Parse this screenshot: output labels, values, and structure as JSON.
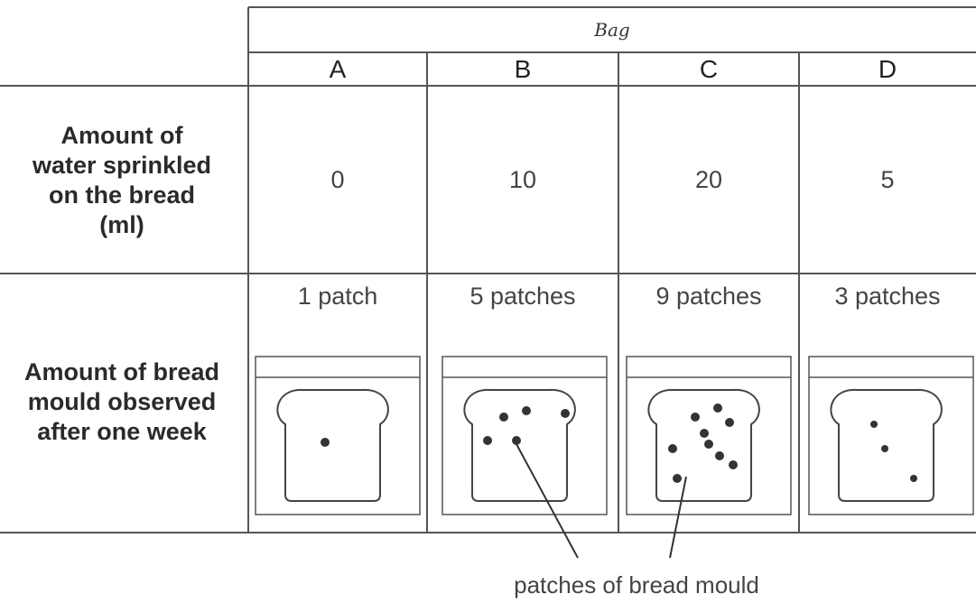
{
  "table": {
    "group_header": "Bag",
    "columns": [
      "A",
      "B",
      "C",
      "D"
    ],
    "rows": [
      {
        "label": "Amount of water sprinkled on the bread (ml)",
        "values": [
          0,
          10,
          20,
          5
        ]
      },
      {
        "label": "Amount of bread mould observed after one week",
        "values": [
          "1 patch",
          "5 patches",
          "9 patches",
          "3 patches"
        ]
      }
    ]
  },
  "caption": "patches of bread mould"
}
